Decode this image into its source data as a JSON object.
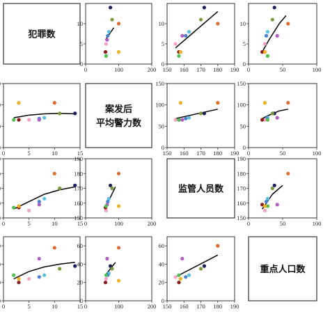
{
  "colors": {
    "navy": "#1e1e5c",
    "olive": "#7a9a3a",
    "cyan": "#5bc0de",
    "blue": "#4a7fd4",
    "magenta": "#b05cc0",
    "pink": "#f4a0c8",
    "darkred": "#8b1a1a",
    "green": "#4fbf4f",
    "orange": "#e06a2a",
    "yellow": "#f0b020",
    "trend": "#000000"
  },
  "chart_data": {
    "type": "scatter-matrix",
    "variables": [
      {
        "key": "crime",
        "label": "犯罪数",
        "label_lines": [
          "犯罪数"
        ]
      },
      {
        "key": "police",
        "label": "案发后平均警力数",
        "label_lines": [
          "案发后",
          "平均警力数"
        ]
      },
      {
        "key": "supervised",
        "label": "监管人员数",
        "label_lines": [
          "监管人员数"
        ]
      },
      {
        "key": "key_pop",
        "label": "重点人口数",
        "label_lines": [
          "重点人口数"
        ]
      }
    ],
    "panels": [
      {
        "row": 0,
        "col": 1,
        "xlim": [
          0,
          200
        ],
        "xticks": [
          0,
          100,
          200
        ],
        "ylim": [
          0,
          15
        ],
        "yticks": [
          0,
          5,
          10
        ],
        "points": [
          {
            "x": 75,
            "y": 14,
            "color": "navy"
          },
          {
            "x": 80,
            "y": 11,
            "color": "olive"
          },
          {
            "x": 70,
            "y": 8,
            "color": "cyan"
          },
          {
            "x": 67,
            "y": 7,
            "color": "blue"
          },
          {
            "x": 65,
            "y": 6,
            "color": "magenta"
          },
          {
            "x": 62,
            "y": 5,
            "color": "pink"
          },
          {
            "x": 60,
            "y": 3,
            "color": "darkred"
          },
          {
            "x": 62,
            "y": 2,
            "color": "green"
          },
          {
            "x": 100,
            "y": 10,
            "color": "orange"
          },
          {
            "x": 100,
            "y": 3,
            "color": "yellow"
          }
        ],
        "trend": [
          [
            60,
            6
          ],
          [
            85,
            9
          ]
        ]
      },
      {
        "row": 0,
        "col": 2,
        "xlim": [
          150,
          190
        ],
        "xticks": [
          150,
          160,
          170,
          180,
          190
        ],
        "ylim": [
          0,
          15
        ],
        "yticks": [
          0,
          5,
          10
        ],
        "points": [
          {
            "x": 172,
            "y": 14,
            "color": "navy"
          },
          {
            "x": 170,
            "y": 11,
            "color": "olive"
          },
          {
            "x": 163,
            "y": 8,
            "color": "cyan"
          },
          {
            "x": 161,
            "y": 7,
            "color": "blue"
          },
          {
            "x": 159,
            "y": 7,
            "color": "magenta"
          },
          {
            "x": 155,
            "y": 5,
            "color": "pink"
          },
          {
            "x": 157,
            "y": 3,
            "color": "darkred"
          },
          {
            "x": 157,
            "y": 2,
            "color": "green"
          },
          {
            "x": 180,
            "y": 10,
            "color": "orange"
          },
          {
            "x": 158,
            "y": 3,
            "color": "yellow"
          }
        ],
        "trend": [
          [
            155,
            4
          ],
          [
            180,
            13
          ]
        ]
      },
      {
        "row": 0,
        "col": 3,
        "xlim": [
          0,
          100
        ],
        "xticks": [
          0,
          50,
          100
        ],
        "ylim": [
          0,
          15
        ],
        "yticks": [
          0,
          5,
          10
        ],
        "points": [
          {
            "x": 38,
            "y": 14,
            "color": "navy"
          },
          {
            "x": 35,
            "y": 11,
            "color": "olive"
          },
          {
            "x": 28,
            "y": 8,
            "color": "cyan"
          },
          {
            "x": 26,
            "y": 7,
            "color": "blue"
          },
          {
            "x": 42,
            "y": 7,
            "color": "magenta"
          },
          {
            "x": 24,
            "y": 5,
            "color": "pink"
          },
          {
            "x": 20,
            "y": 3,
            "color": "darkred"
          },
          {
            "x": 28,
            "y": 2,
            "color": "green"
          },
          {
            "x": 58,
            "y": 10,
            "color": "orange"
          },
          {
            "x": 24,
            "y": 3,
            "color": "yellow"
          }
        ],
        "trend": [
          [
            20,
            3
          ],
          [
            30,
            6
          ],
          [
            45,
            10
          ],
          [
            55,
            12
          ]
        ]
      },
      {
        "row": 1,
        "col": 0,
        "xlim": [
          0,
          15
        ],
        "xticks": [
          0,
          5,
          10,
          15
        ],
        "ylim": [
          0,
          150
        ],
        "yticks": [
          0,
          50,
          100,
          150
        ],
        "points": [
          {
            "x": 14,
            "y": 80,
            "color": "navy"
          },
          {
            "x": 11,
            "y": 80,
            "color": "olive"
          },
          {
            "x": 8,
            "y": 70,
            "color": "cyan"
          },
          {
            "x": 7,
            "y": 68,
            "color": "blue"
          },
          {
            "x": 7,
            "y": 65,
            "color": "magenta"
          },
          {
            "x": 5,
            "y": 65,
            "color": "pink"
          },
          {
            "x": 3,
            "y": 65,
            "color": "darkred"
          },
          {
            "x": 2,
            "y": 65,
            "color": "green"
          },
          {
            "x": 10,
            "y": 105,
            "color": "orange"
          },
          {
            "x": 3,
            "y": 105,
            "color": "yellow"
          }
        ],
        "trend": [
          [
            2,
            70
          ],
          [
            5,
            76
          ],
          [
            8,
            79
          ],
          [
            11,
            80
          ],
          [
            14,
            79
          ]
        ]
      },
      {
        "row": 1,
        "col": 2,
        "xlim": [
          150,
          190
        ],
        "xticks": [
          150,
          160,
          170,
          180,
          190
        ],
        "ylim": [
          0,
          150
        ],
        "yticks": [
          0,
          50,
          100,
          150
        ],
        "points": [
          {
            "x": 172,
            "y": 80,
            "color": "navy"
          },
          {
            "x": 170,
            "y": 80,
            "color": "olive"
          },
          {
            "x": 163,
            "y": 70,
            "color": "cyan"
          },
          {
            "x": 161,
            "y": 68,
            "color": "blue"
          },
          {
            "x": 159,
            "y": 65,
            "color": "magenta"
          },
          {
            "x": 155,
            "y": 65,
            "color": "pink"
          },
          {
            "x": 157,
            "y": 65,
            "color": "darkred"
          },
          {
            "x": 157,
            "y": 65,
            "color": "green"
          },
          {
            "x": 180,
            "y": 105,
            "color": "orange"
          },
          {
            "x": 158,
            "y": 105,
            "color": "yellow"
          }
        ],
        "trend": [
          [
            155,
            68
          ],
          [
            180,
            90
          ]
        ]
      },
      {
        "row": 1,
        "col": 3,
        "xlim": [
          0,
          100
        ],
        "xticks": [
          0,
          50,
          100
        ],
        "ylim": [
          0,
          150
        ],
        "yticks": [
          0,
          50,
          100,
          150
        ],
        "points": [
          {
            "x": 38,
            "y": 80,
            "color": "navy"
          },
          {
            "x": 35,
            "y": 80,
            "color": "olive"
          },
          {
            "x": 28,
            "y": 70,
            "color": "cyan"
          },
          {
            "x": 26,
            "y": 68,
            "color": "blue"
          },
          {
            "x": 42,
            "y": 70,
            "color": "magenta"
          },
          {
            "x": 24,
            "y": 65,
            "color": "pink"
          },
          {
            "x": 20,
            "y": 65,
            "color": "darkred"
          },
          {
            "x": 28,
            "y": 65,
            "color": "green"
          },
          {
            "x": 58,
            "y": 105,
            "color": "orange"
          },
          {
            "x": 24,
            "y": 105,
            "color": "yellow"
          }
        ],
        "trend": [
          [
            20,
            68
          ],
          [
            30,
            76
          ],
          [
            45,
            86
          ],
          [
            58,
            90
          ]
        ]
      },
      {
        "row": 2,
        "col": 0,
        "xlim": [
          0,
          15
        ],
        "xticks": [
          0,
          5,
          10,
          15
        ],
        "ylim": [
          150,
          190
        ],
        "yticks": [
          150,
          160,
          170,
          180,
          190
        ],
        "points": [
          {
            "x": 14,
            "y": 172,
            "color": "navy"
          },
          {
            "x": 11,
            "y": 170,
            "color": "olive"
          },
          {
            "x": 8,
            "y": 163,
            "color": "cyan"
          },
          {
            "x": 7,
            "y": 161,
            "color": "blue"
          },
          {
            "x": 7,
            "y": 159,
            "color": "magenta"
          },
          {
            "x": 5,
            "y": 155,
            "color": "pink"
          },
          {
            "x": 3,
            "y": 157,
            "color": "darkred"
          },
          {
            "x": 2,
            "y": 157,
            "color": "green"
          },
          {
            "x": 10,
            "y": 180,
            "color": "orange"
          },
          {
            "x": 3,
            "y": 158,
            "color": "yellow"
          }
        ],
        "trend": [
          [
            2,
            156
          ],
          [
            5,
            161
          ],
          [
            8,
            166
          ],
          [
            11,
            169
          ],
          [
            14,
            171
          ]
        ]
      },
      {
        "row": 2,
        "col": 1,
        "xlim": [
          0,
          200
        ],
        "xticks": [
          0,
          100,
          200
        ],
        "ylim": [
          150,
          190
        ],
        "yticks": [
          150,
          160,
          170,
          180,
          190
        ],
        "points": [
          {
            "x": 75,
            "y": 172,
            "color": "navy"
          },
          {
            "x": 80,
            "y": 170,
            "color": "olive"
          },
          {
            "x": 70,
            "y": 163,
            "color": "cyan"
          },
          {
            "x": 67,
            "y": 161,
            "color": "blue"
          },
          {
            "x": 65,
            "y": 159,
            "color": "magenta"
          },
          {
            "x": 62,
            "y": 155,
            "color": "pink"
          },
          {
            "x": 60,
            "y": 157,
            "color": "darkred"
          },
          {
            "x": 62,
            "y": 158,
            "color": "green"
          },
          {
            "x": 100,
            "y": 180,
            "color": "orange"
          },
          {
            "x": 100,
            "y": 158,
            "color": "yellow"
          }
        ],
        "trend": [
          [
            60,
            157
          ],
          [
            90,
            171
          ]
        ]
      },
      {
        "row": 2,
        "col": 3,
        "xlim": [
          0,
          100
        ],
        "xticks": [
          0,
          50,
          100
        ],
        "ylim": [
          150,
          190
        ],
        "yticks": [
          150,
          160,
          170,
          180,
          190
        ],
        "points": [
          {
            "x": 38,
            "y": 172,
            "color": "navy"
          },
          {
            "x": 35,
            "y": 170,
            "color": "olive"
          },
          {
            "x": 28,
            "y": 163,
            "color": "cyan"
          },
          {
            "x": 26,
            "y": 161,
            "color": "blue"
          },
          {
            "x": 42,
            "y": 159,
            "color": "magenta"
          },
          {
            "x": 24,
            "y": 155,
            "color": "pink"
          },
          {
            "x": 20,
            "y": 159,
            "color": "darkred"
          },
          {
            "x": 28,
            "y": 158,
            "color": "green"
          },
          {
            "x": 58,
            "y": 180,
            "color": "orange"
          },
          {
            "x": 24,
            "y": 158,
            "color": "yellow"
          }
        ],
        "trend": [
          [
            20,
            156
          ],
          [
            35,
            166
          ],
          [
            50,
            172
          ]
        ]
      },
      {
        "row": 3,
        "col": 0,
        "xlim": [
          0,
          15
        ],
        "xticks": [
          0,
          5,
          10,
          15
        ],
        "ylim": [
          0,
          70
        ],
        "yticks": [
          0,
          20,
          40,
          60
        ],
        "points": [
          {
            "x": 14,
            "y": 38,
            "color": "navy"
          },
          {
            "x": 11,
            "y": 35,
            "color": "olive"
          },
          {
            "x": 8,
            "y": 28,
            "color": "cyan"
          },
          {
            "x": 7,
            "y": 26,
            "color": "blue"
          },
          {
            "x": 7,
            "y": 46,
            "color": "magenta"
          },
          {
            "x": 5,
            "y": 24,
            "color": "pink"
          },
          {
            "x": 3,
            "y": 20,
            "color": "darkred"
          },
          {
            "x": 2,
            "y": 28,
            "color": "green"
          },
          {
            "x": 10,
            "y": 58,
            "color": "orange"
          },
          {
            "x": 3,
            "y": 24,
            "color": "yellow"
          }
        ],
        "trend": [
          [
            2,
            24
          ],
          [
            5,
            32
          ],
          [
            8,
            37
          ],
          [
            11,
            40
          ],
          [
            14,
            42
          ]
        ]
      },
      {
        "row": 3,
        "col": 1,
        "xlim": [
          0,
          200
        ],
        "xticks": [
          0,
          100,
          200
        ],
        "ylim": [
          0,
          70
        ],
        "yticks": [
          0,
          20,
          40,
          60
        ],
        "points": [
          {
            "x": 75,
            "y": 38,
            "color": "navy"
          },
          {
            "x": 80,
            "y": 35,
            "color": "olive"
          },
          {
            "x": 70,
            "y": 30,
            "color": "cyan"
          },
          {
            "x": 67,
            "y": 28,
            "color": "blue"
          },
          {
            "x": 65,
            "y": 46,
            "color": "magenta"
          },
          {
            "x": 62,
            "y": 24,
            "color": "pink"
          },
          {
            "x": 60,
            "y": 20,
            "color": "darkred"
          },
          {
            "x": 62,
            "y": 28,
            "color": "green"
          },
          {
            "x": 100,
            "y": 58,
            "color": "orange"
          },
          {
            "x": 100,
            "y": 22,
            "color": "yellow"
          }
        ],
        "trend": [
          [
            60,
            28
          ],
          [
            90,
            42
          ]
        ]
      },
      {
        "row": 3,
        "col": 2,
        "xlim": [
          150,
          190
        ],
        "xticks": [
          150,
          160,
          170,
          180,
          190
        ],
        "ylim": [
          0,
          70
        ],
        "yticks": [
          0,
          20,
          40,
          60
        ],
        "points": [
          {
            "x": 172,
            "y": 38,
            "color": "navy"
          },
          {
            "x": 170,
            "y": 35,
            "color": "olive"
          },
          {
            "x": 163,
            "y": 28,
            "color": "cyan"
          },
          {
            "x": 161,
            "y": 26,
            "color": "blue"
          },
          {
            "x": 159,
            "y": 46,
            "color": "magenta"
          },
          {
            "x": 155,
            "y": 26,
            "color": "pink"
          },
          {
            "x": 157,
            "y": 20,
            "color": "darkred"
          },
          {
            "x": 157,
            "y": 28,
            "color": "green"
          },
          {
            "x": 180,
            "y": 60,
            "color": "orange"
          },
          {
            "x": 158,
            "y": 24,
            "color": "yellow"
          }
        ],
        "trend": [
          [
            155,
            26
          ],
          [
            180,
            50
          ]
        ]
      }
    ]
  }
}
